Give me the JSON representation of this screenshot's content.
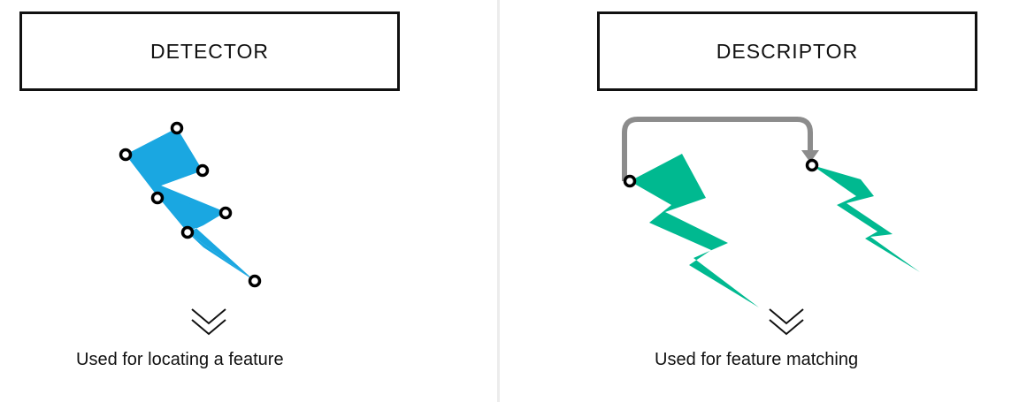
{
  "detector": {
    "title": "DETECTOR",
    "caption": "Used for locating a feature",
    "shape_color": "#1aa7e1",
    "keypoint_count": 7
  },
  "descriptor": {
    "title": "DESCRIPTOR",
    "caption": "Used for feature matching",
    "shape_color": "#00b990",
    "arrow_color": "#8c8c8c"
  }
}
